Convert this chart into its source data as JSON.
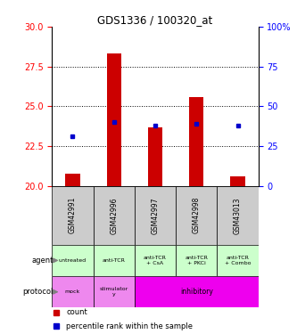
{
  "title": "GDS1336 / 100320_at",
  "samples": [
    "GSM42991",
    "GSM42996",
    "GSM42997",
    "GSM42998",
    "GSM43013"
  ],
  "bar_bottom": [
    20.0,
    20.0,
    20.0,
    20.0,
    20.0
  ],
  "bar_top": [
    20.8,
    28.3,
    23.7,
    25.6,
    20.6
  ],
  "blue_y": [
    23.1,
    24.0,
    23.8,
    23.9,
    23.8
  ],
  "bar_color": "#cc0000",
  "blue_color": "#0000cc",
  "ylim_left": [
    20,
    30
  ],
  "ylim_right": [
    0,
    100
  ],
  "yticks_left": [
    20,
    22.5,
    25,
    27.5,
    30
  ],
  "yticks_right": [
    0,
    25,
    50,
    75,
    100
  ],
  "agent_labels": [
    "untreated",
    "anti-TCR",
    "anti-TCR\n+ CsA",
    "anti-TCR\n+ PKCi",
    "anti-TCR\n+ Combo"
  ],
  "agent_bg": "#ccffcc",
  "protocol_entries": [
    {
      "label": "mock",
      "start": 0,
      "end": 1,
      "color": "#ee88ee"
    },
    {
      "label": "stimulator\ny",
      "start": 1,
      "end": 2,
      "color": "#ee88ee"
    },
    {
      "label": "inhibitory",
      "start": 2,
      "end": 5,
      "color": "#ee00ee"
    }
  ],
  "sample_bg_color": "#cccccc",
  "legend_count_color": "#cc0000",
  "legend_pct_color": "#0000cc",
  "bar_width": 0.35
}
